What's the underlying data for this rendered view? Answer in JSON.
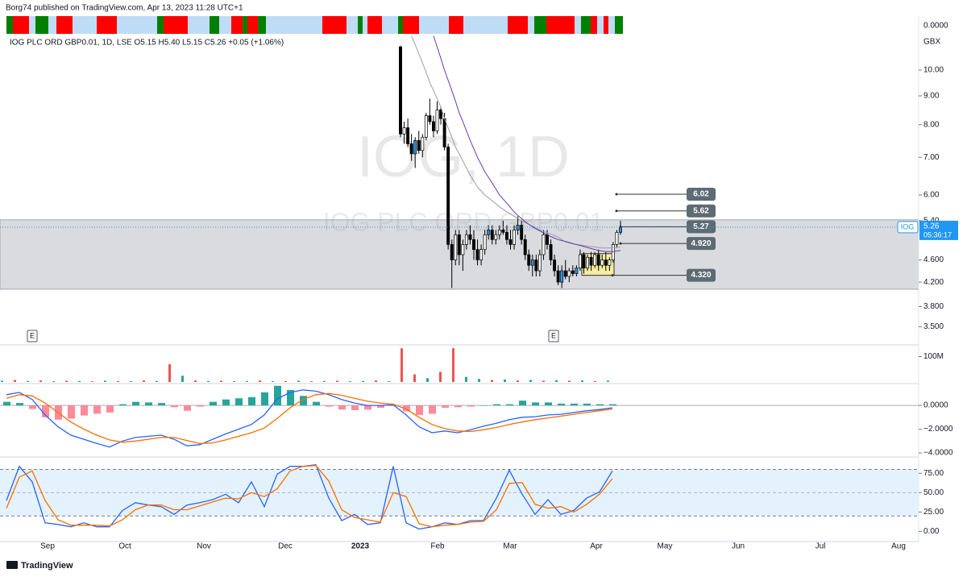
{
  "header": "Borg74 published on TradingView.com, Apr 13, 2023 11:28 UTC+1",
  "legend": "IOG PLC ORD GBP0.01, 1D, LSE  O5.15 H5.40 L5.15 C5.26 +0.05 (+1.06%)",
  "watermark": {
    "title": "IOG, 1D",
    "subtitle": "IOG PLC ORD GBP0.01"
  },
  "footer": "TradingView",
  "chart_data": [
    {
      "type": "candlestick",
      "open": [
        11.0,
        7.7,
        7.9,
        7.4,
        7.1,
        7.5,
        7.2,
        7.6,
        8.3,
        8.1,
        7.8,
        8.5,
        8.2,
        7.3,
        4.9,
        4.6,
        5.1,
        4.7,
        4.9,
        5.1,
        5.0,
        4.8,
        4.6,
        4.8,
        5.1,
        5.2,
        5.0,
        5.1,
        5.2,
        5.15,
        5.0,
        4.9,
        5.2,
        5.3,
        5.0,
        4.7,
        4.5,
        4.6,
        4.4,
        4.7,
        5.1,
        4.9,
        4.6,
        4.4,
        4.2,
        4.4,
        4.3,
        4.4,
        4.35,
        4.45,
        4.7,
        4.45,
        4.65,
        4.5,
        4.7,
        4.5,
        4.6,
        4.5,
        4.6,
        4.9,
        5.15
      ],
      "high": [
        11.05,
        8.1,
        8.2,
        7.7,
        7.6,
        7.8,
        7.7,
        8.4,
        8.9,
        8.3,
        8.8,
        8.6,
        8.4,
        7.4,
        5.0,
        5.2,
        5.2,
        5.0,
        5.2,
        5.3,
        5.2,
        5.0,
        4.9,
        5.2,
        5.3,
        5.3,
        5.2,
        5.3,
        5.4,
        5.3,
        5.2,
        5.3,
        5.5,
        5.4,
        5.1,
        4.8,
        4.7,
        4.7,
        4.8,
        5.2,
        5.2,
        5.0,
        4.7,
        4.5,
        4.5,
        4.6,
        4.45,
        4.5,
        4.5,
        4.8,
        4.75,
        4.7,
        4.75,
        4.75,
        4.8,
        4.7,
        4.75,
        4.65,
        4.95,
        5.2,
        5.4
      ],
      "low": [
        7.6,
        7.4,
        7.3,
        6.9,
        6.7,
        7.1,
        7.0,
        7.5,
        8.0,
        7.6,
        7.7,
        8.0,
        7.2,
        4.8,
        4.1,
        4.5,
        4.5,
        4.4,
        4.8,
        4.9,
        4.6,
        4.5,
        4.5,
        4.7,
        5.0,
        4.9,
        4.9,
        5.0,
        5.1,
        4.9,
        4.8,
        4.8,
        5.1,
        4.9,
        4.6,
        4.4,
        4.3,
        4.3,
        4.3,
        4.6,
        4.8,
        4.5,
        4.3,
        4.15,
        4.1,
        4.25,
        4.2,
        4.3,
        4.3,
        4.4,
        4.35,
        4.4,
        4.4,
        4.45,
        4.4,
        4.45,
        4.4,
        4.4,
        4.55,
        4.85,
        5.1
      ],
      "close": [
        7.7,
        7.9,
        7.4,
        7.1,
        7.5,
        7.2,
        7.6,
        8.3,
        8.1,
        7.8,
        8.5,
        8.2,
        7.3,
        4.9,
        4.6,
        5.1,
        4.7,
        4.9,
        5.1,
        5.0,
        4.8,
        4.6,
        4.8,
        5.1,
        5.2,
        5.0,
        5.1,
        5.2,
        5.15,
        5.0,
        4.9,
        5.2,
        5.3,
        5.0,
        4.7,
        4.5,
        4.6,
        4.4,
        4.7,
        5.1,
        4.9,
        4.6,
        4.4,
        4.2,
        4.4,
        4.3,
        4.4,
        4.35,
        4.45,
        4.7,
        4.45,
        4.65,
        4.5,
        4.7,
        4.5,
        4.6,
        4.5,
        4.6,
        4.9,
        5.15,
        5.26
      ],
      "up_color": "#ffffff",
      "down_color": "#000000",
      "accent_color": "#2196f3",
      "log_scale": true,
      "ylim": [
        3.26,
        11.6
      ],
      "yticks": [
        {
          "value": 10,
          "label": "10.00"
        },
        {
          "value": 9,
          "label": "9.00"
        },
        {
          "value": 8,
          "label": "8.00"
        },
        {
          "value": 7,
          "label": "7.00"
        },
        {
          "value": 6,
          "label": "6.00"
        },
        {
          "value": 5.4,
          "label": "5.40"
        },
        {
          "value": 4.6,
          "label": "4.600"
        },
        {
          "value": 4.2,
          "label": "4.200"
        },
        {
          "value": 3.8,
          "label": "3.800"
        },
        {
          "value": 3.5,
          "label": "3.500"
        }
      ],
      "y_unit": "GBX",
      "strip_tick": "0.0000",
      "series": [
        {
          "color": "#9e9e9e",
          "values": [
            null,
            null,
            null,
            11.5,
            11.1,
            10.7,
            10.3,
            9.9,
            9.5,
            9.2,
            8.9,
            8.6,
            8.2,
            7.9,
            7.6,
            7.3,
            7.1,
            6.9,
            6.7,
            6.5,
            6.35,
            6.2,
            6.1,
            6.0,
            5.93,
            5.86,
            5.79,
            5.72,
            5.66,
            5.6,
            5.55,
            5.5,
            5.45,
            5.4,
            5.36,
            5.32,
            5.28,
            5.24,
            5.2,
            5.17,
            5.14,
            5.11,
            5.08,
            5.05,
            5.0,
            4.95,
            4.93,
            4.91,
            4.9,
            4.89,
            4.88,
            4.87,
            4.86,
            4.85,
            4.84,
            4.83,
            4.83,
            4.83,
            4.84,
            4.84,
            4.85
          ]
        },
        {
          "color": "#673ab7",
          "values": [
            null,
            null,
            null,
            null,
            null,
            null,
            null,
            null,
            null,
            11.5,
            11.0,
            10.5,
            10.0,
            9.6,
            9.2,
            8.8,
            8.4,
            8.1,
            7.8,
            7.5,
            7.25,
            7.0,
            6.8,
            6.6,
            6.45,
            6.3,
            6.15,
            6.0,
            5.9,
            5.8,
            5.7,
            5.6,
            5.52,
            5.45,
            5.38,
            5.32,
            5.27,
            5.22,
            5.18,
            5.14,
            5.1,
            5.06,
            5.03,
            5.0,
            4.98,
            4.96,
            4.94,
            4.92,
            4.9,
            4.88,
            4.86,
            4.84,
            4.82,
            4.8,
            4.78,
            4.77,
            4.76,
            4.76,
            4.76,
            4.77,
            4.78
          ]
        }
      ],
      "levels": [
        6.02,
        5.62,
        5.27,
        {
          "value": 4.92,
          "label": "4.920"
        },
        {
          "value": 4.32,
          "label": "4.320"
        }
      ],
      "level_color": "#5d6b73",
      "zone": [
        4.08,
        5.42
      ],
      "box": [
        4.32,
        4.72
      ],
      "box_color": "#f5eda0",
      "last_price": {
        "symbol": "IOG",
        "value": 5.26,
        "countdown": "05:36:17",
        "color": "#2196f3"
      },
      "x_axis_labels": [
        "Sep",
        "Oct",
        "Nov",
        "Dec",
        "2023",
        "Feb",
        "Mar",
        "Apr",
        "May",
        "Jun",
        "Jul",
        "Aug"
      ],
      "events": [
        "E",
        "E"
      ]
    },
    {
      "type": "bar",
      "values": [
        5,
        8,
        4,
        6,
        3,
        5,
        4,
        3,
        5,
        4,
        3,
        6,
        4,
        70,
        25,
        6,
        4,
        5,
        3,
        4,
        6,
        3,
        4,
        5,
        3,
        4,
        5,
        3,
        4,
        6,
        3,
        133,
        30,
        15,
        40,
        133,
        20,
        12,
        8,
        10,
        6,
        8,
        5,
        7,
        5,
        6,
        4,
        5
      ],
      "colors": [
        "#26a69a",
        "#ef5350",
        "#26a69a",
        "#ef5350",
        "#26a69a",
        "#ef5350",
        "#26a69a",
        "#ef5350",
        "#26a69a",
        "#ef5350",
        "#26a69a",
        "#ef5350",
        "#26a69a",
        "#ef5350",
        "#26a69a",
        "#ef5350",
        "#26a69a",
        "#ef5350",
        "#26a69a",
        "#26a69a",
        "#ef5350",
        "#26a69a",
        "#ef5350",
        "#26a69a",
        "#ef5350",
        "#26a69a",
        "#ef5350",
        "#26a69a",
        "#26a69a",
        "#ef5350",
        "#26a69a",
        "#ef5350",
        "#ef5350",
        "#26a69a",
        "#ef5350",
        "#ef5350",
        "#26a69a",
        "#26a69a",
        "#ef5350",
        "#26a69a",
        "#ef5350",
        "#26a69a",
        "#ef5350",
        "#26a69a",
        "#ef5350",
        "#26a69a",
        "#ef5350",
        "#26a69a"
      ],
      "ylim": [
        0,
        140
      ],
      "yticks": [
        {
          "value": 100,
          "label": "100M"
        }
      ]
    },
    {
      "type": "macd",
      "histogram": [
        0.3,
        0.2,
        -0.3,
        -1.0,
        -1.2,
        -1.1,
        -0.85,
        -0.7,
        -0.6,
        0.1,
        0.3,
        0.25,
        0.2,
        -0.15,
        -0.45,
        -0.1,
        0.3,
        0.5,
        0.6,
        0.7,
        1.1,
        1.65,
        1.3,
        0.8,
        0.3,
        -0.1,
        -0.35,
        -0.4,
        -0.35,
        -0.2,
        -0.05,
        -0.5,
        -0.8,
        -0.7,
        -0.2,
        -0.15,
        -0.1,
        0.0,
        0.1,
        0.1,
        0.4,
        0.25,
        0.25,
        0.15,
        0.15,
        0.15,
        0.1,
        0.1
      ],
      "pos_color": "#26a69a",
      "neg_color": "#ff8a9a",
      "series": [
        {
          "color": "#2962ff",
          "values": [
            0.9,
            1.1,
            0.5,
            -0.8,
            -1.8,
            -2.5,
            -2.85,
            -3.2,
            -3.5,
            -3.0,
            -2.7,
            -2.6,
            -2.5,
            -2.85,
            -3.4,
            -3.3,
            -2.85,
            -2.4,
            -2.0,
            -1.6,
            -0.8,
            0.55,
            1.1,
            1.3,
            1.2,
            0.9,
            0.5,
            0.2,
            0,
            0,
            0.05,
            -0.8,
            -1.8,
            -2.3,
            -2.15,
            -2.3,
            -2.05,
            -1.75,
            -1.5,
            -1.2,
            -1.0,
            -0.95,
            -0.8,
            -0.75,
            -0.6,
            -0.45,
            -0.35,
            -0.2
          ]
        },
        {
          "color": "#ff6d00",
          "values": [
            0.6,
            0.9,
            0.8,
            0.2,
            -0.6,
            -1.4,
            -2.0,
            -2.5,
            -2.9,
            -3.1,
            -3.0,
            -2.85,
            -2.7,
            -2.7,
            -2.95,
            -3.2,
            -3.15,
            -2.9,
            -2.6,
            -2.3,
            -1.9,
            -1.1,
            -0.2,
            0.5,
            0.9,
            1.0,
            0.85,
            0.6,
            0.35,
            0.2,
            0.1,
            -0.3,
            -1.0,
            -1.6,
            -1.95,
            -2.15,
            -2.2,
            -2.05,
            -1.85,
            -1.6,
            -1.4,
            -1.2,
            -1.05,
            -0.9,
            -0.75,
            -0.6,
            -0.45,
            -0.3
          ]
        }
      ],
      "ylim": [
        -4.4,
        1.7
      ],
      "yticks": [
        {
          "value": 0,
          "label": "0.0000"
        },
        {
          "value": -2,
          "label": "−2.0000"
        },
        {
          "value": -4,
          "label": "−4.0000"
        }
      ]
    },
    {
      "type": "line",
      "series": [
        {
          "color": "#2962ff",
          "values": [
            40,
            84,
            64,
            11,
            9,
            6,
            11,
            6,
            6,
            27,
            37,
            34,
            32,
            22,
            34,
            37,
            41,
            48,
            37,
            64,
            32,
            74,
            84,
            84,
            86,
            43,
            14,
            22,
            9,
            11,
            84,
            11,
            3,
            6,
            11,
            9,
            14,
            14,
            43,
            79,
            48,
            22,
            41,
            22,
            27,
            43,
            51,
            78
          ]
        },
        {
          "color": "#ff6d00",
          "values": [
            30,
            70,
            78,
            40,
            15,
            8,
            8,
            8,
            7,
            15,
            28,
            34,
            34,
            28,
            28,
            33,
            38,
            43,
            42,
            50,
            45,
            55,
            78,
            84,
            85,
            65,
            28,
            18,
            15,
            12,
            50,
            45,
            10,
            6,
            8,
            9,
            12,
            13,
            28,
            62,
            63,
            35,
            30,
            32,
            25,
            35,
            48,
            68
          ]
        }
      ],
      "band": [
        20,
        80
      ],
      "band_color": "#e3f2fd",
      "ylim": [
        -11,
        93
      ],
      "yticks": [
        {
          "value": 75,
          "label": "75.00"
        },
        {
          "value": 50,
          "label": "50.00"
        },
        {
          "value": 25,
          "label": "25.00"
        },
        {
          "value": 0,
          "label": "0.00"
        }
      ]
    }
  ]
}
